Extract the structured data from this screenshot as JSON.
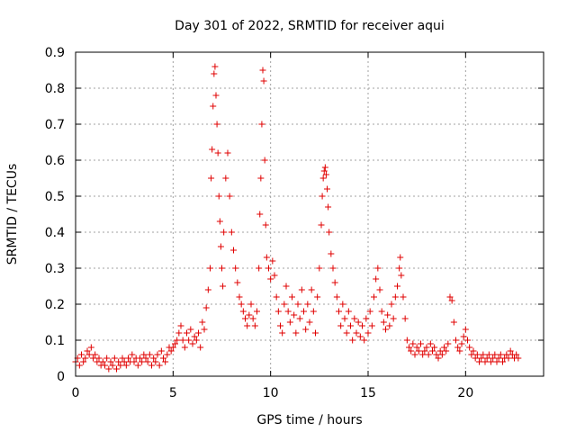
{
  "chart_data": {
    "type": "scatter",
    "title": "Day 301 of 2022, SRMTID for receiver aqui",
    "xlabel": "GPS time / hours",
    "ylabel": "SRMTID / TECUs",
    "xlim": [
      0,
      24
    ],
    "ylim": [
      0,
      0.9
    ],
    "xticks": [
      "0",
      "5",
      "10",
      "15",
      "20"
    ],
    "xtick_values": [
      0,
      5,
      10,
      15,
      20
    ],
    "yticks": [
      "0",
      "0.1",
      "0.2",
      "0.3",
      "0.4",
      "0.5",
      "0.6",
      "0.7",
      "0.8",
      "0.9"
    ],
    "ytick_values": [
      0,
      0.1,
      0.2,
      0.3,
      0.4,
      0.5,
      0.6,
      0.7,
      0.8,
      0.9
    ],
    "grid": true,
    "marker": "+",
    "color": "#e00000",
    "series": [
      {
        "name": "SRMTID",
        "points": [
          [
            0.0,
            0.04
          ],
          [
            0.1,
            0.05
          ],
          [
            0.2,
            0.03
          ],
          [
            0.3,
            0.06
          ],
          [
            0.4,
            0.04
          ],
          [
            0.5,
            0.05
          ],
          [
            0.6,
            0.07
          ],
          [
            0.7,
            0.06
          ],
          [
            0.8,
            0.08
          ],
          [
            0.9,
            0.05
          ],
          [
            1.0,
            0.06
          ],
          [
            1.1,
            0.04
          ],
          [
            1.2,
            0.05
          ],
          [
            1.3,
            0.03
          ],
          [
            1.4,
            0.04
          ],
          [
            1.5,
            0.03
          ],
          [
            1.6,
            0.05
          ],
          [
            1.7,
            0.02
          ],
          [
            1.8,
            0.04
          ],
          [
            1.9,
            0.03
          ],
          [
            2.0,
            0.05
          ],
          [
            2.1,
            0.02
          ],
          [
            2.2,
            0.04
          ],
          [
            2.3,
            0.03
          ],
          [
            2.4,
            0.05
          ],
          [
            2.5,
            0.04
          ],
          [
            2.6,
            0.03
          ],
          [
            2.7,
            0.05
          ],
          [
            2.8,
            0.04
          ],
          [
            2.9,
            0.06
          ],
          [
            3.0,
            0.04
          ],
          [
            3.1,
            0.05
          ],
          [
            3.2,
            0.03
          ],
          [
            3.3,
            0.05
          ],
          [
            3.4,
            0.04
          ],
          [
            3.5,
            0.06
          ],
          [
            3.6,
            0.05
          ],
          [
            3.7,
            0.04
          ],
          [
            3.8,
            0.06
          ],
          [
            3.9,
            0.03
          ],
          [
            4.0,
            0.05
          ],
          [
            4.1,
            0.04
          ],
          [
            4.2,
            0.06
          ],
          [
            4.3,
            0.03
          ],
          [
            4.4,
            0.07
          ],
          [
            4.5,
            0.05
          ],
          [
            4.6,
            0.04
          ],
          [
            4.7,
            0.06
          ],
          [
            4.8,
            0.08
          ],
          [
            4.9,
            0.07
          ],
          [
            5.0,
            0.08
          ],
          [
            5.1,
            0.09
          ],
          [
            5.2,
            0.1
          ],
          [
            5.3,
            0.12
          ],
          [
            5.4,
            0.14
          ],
          [
            5.5,
            0.1
          ],
          [
            5.6,
            0.08
          ],
          [
            5.7,
            0.12
          ],
          [
            5.8,
            0.1
          ],
          [
            5.9,
            0.13
          ],
          [
            6.0,
            0.09
          ],
          [
            6.1,
            0.11
          ],
          [
            6.2,
            0.1
          ],
          [
            6.3,
            0.12
          ],
          [
            6.4,
            0.08
          ],
          [
            6.5,
            0.15
          ],
          [
            6.6,
            0.13
          ],
          [
            6.7,
            0.19
          ],
          [
            6.8,
            0.24
          ],
          [
            6.9,
            0.3
          ],
          [
            6.95,
            0.55
          ],
          [
            7.0,
            0.63
          ],
          [
            7.05,
            0.75
          ],
          [
            7.1,
            0.84
          ],
          [
            7.15,
            0.86
          ],
          [
            7.2,
            0.78
          ],
          [
            7.25,
            0.7
          ],
          [
            7.3,
            0.62
          ],
          [
            7.35,
            0.5
          ],
          [
            7.4,
            0.43
          ],
          [
            7.45,
            0.36
          ],
          [
            7.5,
            0.3
          ],
          [
            7.55,
            0.25
          ],
          [
            7.6,
            0.4
          ],
          [
            7.7,
            0.55
          ],
          [
            7.8,
            0.62
          ],
          [
            7.9,
            0.5
          ],
          [
            8.0,
            0.4
          ],
          [
            8.1,
            0.35
          ],
          [
            8.2,
            0.3
          ],
          [
            8.3,
            0.26
          ],
          [
            8.4,
            0.22
          ],
          [
            8.5,
            0.2
          ],
          [
            8.6,
            0.18
          ],
          [
            8.7,
            0.16
          ],
          [
            8.8,
            0.14
          ],
          [
            8.9,
            0.17
          ],
          [
            9.0,
            0.2
          ],
          [
            9.1,
            0.16
          ],
          [
            9.2,
            0.14
          ],
          [
            9.3,
            0.18
          ],
          [
            9.4,
            0.3
          ],
          [
            9.45,
            0.45
          ],
          [
            9.5,
            0.55
          ],
          [
            9.55,
            0.7
          ],
          [
            9.6,
            0.85
          ],
          [
            9.65,
            0.82
          ],
          [
            9.7,
            0.6
          ],
          [
            9.75,
            0.42
          ],
          [
            9.8,
            0.33
          ],
          [
            9.9,
            0.3
          ],
          [
            10.0,
            0.27
          ],
          [
            10.1,
            0.32
          ],
          [
            10.2,
            0.28
          ],
          [
            10.3,
            0.22
          ],
          [
            10.4,
            0.18
          ],
          [
            10.5,
            0.14
          ],
          [
            10.6,
            0.12
          ],
          [
            10.7,
            0.2
          ],
          [
            10.8,
            0.25
          ],
          [
            10.9,
            0.18
          ],
          [
            11.0,
            0.15
          ],
          [
            11.1,
            0.22
          ],
          [
            11.2,
            0.17
          ],
          [
            11.3,
            0.12
          ],
          [
            11.4,
            0.2
          ],
          [
            11.5,
            0.16
          ],
          [
            11.6,
            0.24
          ],
          [
            11.7,
            0.18
          ],
          [
            11.8,
            0.13
          ],
          [
            11.9,
            0.2
          ],
          [
            12.0,
            0.15
          ],
          [
            12.1,
            0.24
          ],
          [
            12.2,
            0.18
          ],
          [
            12.3,
            0.12
          ],
          [
            12.4,
            0.22
          ],
          [
            12.5,
            0.3
          ],
          [
            12.6,
            0.42
          ],
          [
            12.65,
            0.5
          ],
          [
            12.7,
            0.55
          ],
          [
            12.75,
            0.57
          ],
          [
            12.8,
            0.58
          ],
          [
            12.85,
            0.56
          ],
          [
            12.9,
            0.52
          ],
          [
            12.95,
            0.47
          ],
          [
            13.0,
            0.4
          ],
          [
            13.1,
            0.34
          ],
          [
            13.2,
            0.3
          ],
          [
            13.3,
            0.26
          ],
          [
            13.4,
            0.22
          ],
          [
            13.5,
            0.18
          ],
          [
            13.6,
            0.14
          ],
          [
            13.7,
            0.2
          ],
          [
            13.8,
            0.16
          ],
          [
            13.9,
            0.12
          ],
          [
            14.0,
            0.18
          ],
          [
            14.1,
            0.14
          ],
          [
            14.2,
            0.1
          ],
          [
            14.3,
            0.16
          ],
          [
            14.4,
            0.12
          ],
          [
            14.5,
            0.15
          ],
          [
            14.6,
            0.11
          ],
          [
            14.7,
            0.14
          ],
          [
            14.8,
            0.1
          ],
          [
            14.9,
            0.16
          ],
          [
            15.0,
            0.12
          ],
          [
            15.1,
            0.18
          ],
          [
            15.2,
            0.14
          ],
          [
            15.3,
            0.22
          ],
          [
            15.4,
            0.27
          ],
          [
            15.5,
            0.3
          ],
          [
            15.6,
            0.24
          ],
          [
            15.7,
            0.18
          ],
          [
            15.8,
            0.15
          ],
          [
            15.9,
            0.13
          ],
          [
            16.0,
            0.17
          ],
          [
            16.1,
            0.14
          ],
          [
            16.2,
            0.2
          ],
          [
            16.3,
            0.16
          ],
          [
            16.4,
            0.22
          ],
          [
            16.5,
            0.25
          ],
          [
            16.6,
            0.3
          ],
          [
            16.65,
            0.33
          ],
          [
            16.7,
            0.28
          ],
          [
            16.8,
            0.22
          ],
          [
            16.9,
            0.16
          ],
          [
            17.0,
            0.1
          ],
          [
            17.1,
            0.08
          ],
          [
            17.2,
            0.07
          ],
          [
            17.3,
            0.09
          ],
          [
            17.4,
            0.06
          ],
          [
            17.5,
            0.08
          ],
          [
            17.6,
            0.07
          ],
          [
            17.7,
            0.09
          ],
          [
            17.8,
            0.06
          ],
          [
            17.9,
            0.07
          ],
          [
            18.0,
            0.08
          ],
          [
            18.1,
            0.06
          ],
          [
            18.2,
            0.09
          ],
          [
            18.3,
            0.07
          ],
          [
            18.4,
            0.08
          ],
          [
            18.5,
            0.06
          ],
          [
            18.6,
            0.05
          ],
          [
            18.7,
            0.07
          ],
          [
            18.8,
            0.06
          ],
          [
            18.9,
            0.08
          ],
          [
            19.0,
            0.07
          ],
          [
            19.1,
            0.09
          ],
          [
            19.2,
            0.22
          ],
          [
            19.3,
            0.21
          ],
          [
            19.4,
            0.15
          ],
          [
            19.5,
            0.1
          ],
          [
            19.6,
            0.08
          ],
          [
            19.7,
            0.07
          ],
          [
            19.8,
            0.09
          ],
          [
            19.9,
            0.11
          ],
          [
            20.0,
            0.13
          ],
          [
            20.1,
            0.1
          ],
          [
            20.2,
            0.08
          ],
          [
            20.3,
            0.06
          ],
          [
            20.4,
            0.07
          ],
          [
            20.5,
            0.05
          ],
          [
            20.6,
            0.06
          ],
          [
            20.7,
            0.04
          ],
          [
            20.8,
            0.05
          ],
          [
            20.9,
            0.06
          ],
          [
            21.0,
            0.04
          ],
          [
            21.1,
            0.05
          ],
          [
            21.2,
            0.06
          ],
          [
            21.3,
            0.04
          ],
          [
            21.4,
            0.05
          ],
          [
            21.5,
            0.06
          ],
          [
            21.6,
            0.04
          ],
          [
            21.7,
            0.05
          ],
          [
            21.8,
            0.06
          ],
          [
            21.9,
            0.04
          ],
          [
            22.0,
            0.05
          ],
          [
            22.1,
            0.06
          ],
          [
            22.2,
            0.05
          ],
          [
            22.3,
            0.07
          ],
          [
            22.4,
            0.06
          ],
          [
            22.5,
            0.05
          ],
          [
            22.6,
            0.06
          ],
          [
            22.7,
            0.05
          ]
        ]
      }
    ]
  }
}
